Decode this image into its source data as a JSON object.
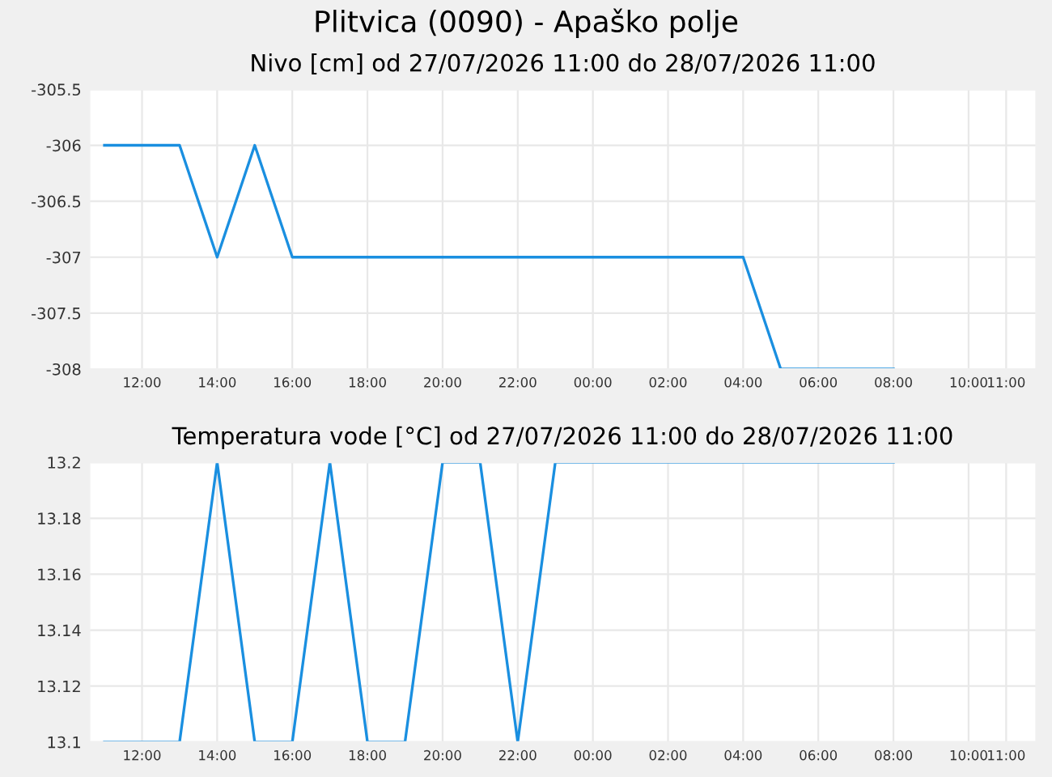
{
  "chart_data": [
    {
      "type": "line",
      "title": "Plitvica (0090) - Apaško polje",
      "subtitle": "Nivo [cm] od 27/07/2026 11:00 do 28/07/2026 11:00",
      "x": [
        "2026-07-27T11:00",
        "2026-07-27T12:00",
        "2026-07-27T13:00",
        "2026-07-27T14:00",
        "2026-07-27T15:00",
        "2026-07-27T16:00",
        "2026-07-27T17:00",
        "2026-07-27T18:00",
        "2026-07-27T19:00",
        "2026-07-27T20:00",
        "2026-07-27T21:00",
        "2026-07-27T22:00",
        "2026-07-27T23:00",
        "2026-07-28T00:00",
        "2026-07-28T01:00",
        "2026-07-28T02:00",
        "2026-07-28T03:00",
        "2026-07-28T04:00",
        "2026-07-28T05:00",
        "2026-07-28T06:00",
        "2026-07-28T07:00",
        "2026-07-28T08:00"
      ],
      "series": [
        {
          "color": "#1a8fe0",
          "values": [
            -306,
            -306,
            -306,
            -307,
            -306,
            -307,
            -307,
            -307,
            -307,
            -307,
            -307,
            -307,
            -307,
            -307,
            -307,
            -307,
            -307,
            -307,
            -308,
            -308,
            -308,
            -308
          ]
        }
      ],
      "xlim": [
        "2026-07-27T10:36",
        "2026-07-28T11:48"
      ],
      "xticks": [
        {
          "value": "2026-07-27T12:00",
          "label": "12:00"
        },
        {
          "value": "2026-07-27T14:00",
          "label": "14:00"
        },
        {
          "value": "2026-07-27T16:00",
          "label": "16:00"
        },
        {
          "value": "2026-07-27T18:00",
          "label": "18:00"
        },
        {
          "value": "2026-07-27T20:00",
          "label": "20:00"
        },
        {
          "value": "2026-07-27T22:00",
          "label": "22:00"
        },
        {
          "value": "2026-07-28T00:00",
          "label": "00:00"
        },
        {
          "value": "2026-07-28T02:00",
          "label": "02:00"
        },
        {
          "value": "2026-07-28T04:00",
          "label": "04:00"
        },
        {
          "value": "2026-07-28T06:00",
          "label": "06:00"
        },
        {
          "value": "2026-07-28T08:00",
          "label": "08:00"
        },
        {
          "value": "2026-07-28T10:00",
          "label": "10:00"
        },
        {
          "value": "2026-07-28T11:00",
          "label": "11:00"
        }
      ],
      "ylim": [
        -308,
        -305.5
      ],
      "yticks": [
        -308,
        -307.5,
        -307,
        -306.5,
        -306,
        -305.5
      ],
      "grid": true
    },
    {
      "type": "line",
      "title": "Temperatura vode [°C] od 27/07/2026 11:00 do 28/07/2026 11:00",
      "x": [
        "2026-07-27T11:00",
        "2026-07-27T12:00",
        "2026-07-27T13:00",
        "2026-07-27T14:00",
        "2026-07-27T15:00",
        "2026-07-27T16:00",
        "2026-07-27T17:00",
        "2026-07-27T18:00",
        "2026-07-27T19:00",
        "2026-07-27T20:00",
        "2026-07-27T21:00",
        "2026-07-27T22:00",
        "2026-07-27T23:00",
        "2026-07-28T00:00",
        "2026-07-28T01:00",
        "2026-07-28T02:00",
        "2026-07-28T03:00",
        "2026-07-28T04:00",
        "2026-07-28T05:00",
        "2026-07-28T06:00",
        "2026-07-28T07:00",
        "2026-07-28T08:00"
      ],
      "series": [
        {
          "color": "#1a8fe0",
          "values": [
            13.1,
            13.1,
            13.1,
            13.2,
            13.1,
            13.1,
            13.2,
            13.1,
            13.1,
            13.2,
            13.2,
            13.1,
            13.2,
            13.2,
            13.2,
            13.2,
            13.2,
            13.2,
            13.2,
            13.2,
            13.2,
            13.2
          ]
        }
      ],
      "xlim": [
        "2026-07-27T10:36",
        "2026-07-28T11:48"
      ],
      "xticks": [
        {
          "value": "2026-07-27T12:00",
          "label": "12:00"
        },
        {
          "value": "2026-07-27T14:00",
          "label": "14:00"
        },
        {
          "value": "2026-07-27T16:00",
          "label": "16:00"
        },
        {
          "value": "2026-07-27T18:00",
          "label": "18:00"
        },
        {
          "value": "2026-07-27T20:00",
          "label": "20:00"
        },
        {
          "value": "2026-07-27T22:00",
          "label": "22:00"
        },
        {
          "value": "2026-07-28T00:00",
          "label": "00:00"
        },
        {
          "value": "2026-07-28T02:00",
          "label": "02:00"
        },
        {
          "value": "2026-07-28T04:00",
          "label": "04:00"
        },
        {
          "value": "2026-07-28T06:00",
          "label": "06:00"
        },
        {
          "value": "2026-07-28T08:00",
          "label": "08:00"
        },
        {
          "value": "2026-07-28T10:00",
          "label": "10:00"
        },
        {
          "value": "2026-07-28T11:00",
          "label": "11:00"
        }
      ],
      "ylim": [
        13.1,
        13.2
      ],
      "yticks": [
        13.1,
        13.12,
        13.14,
        13.16,
        13.18,
        13.2
      ],
      "grid": true
    }
  ]
}
